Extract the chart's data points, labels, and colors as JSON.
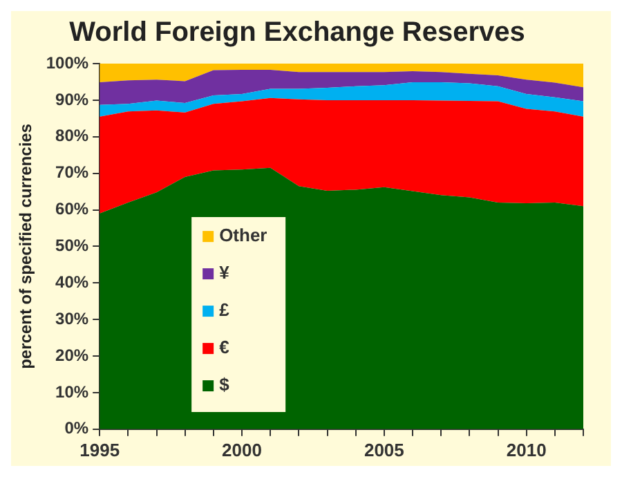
{
  "chart_data": {
    "type": "area",
    "title": "World Foreign Exchange Reserves",
    "ylabel": "percent of specified currencies",
    "stacked": true,
    "legend": "left",
    "grid": false,
    "x": [
      1995,
      1996,
      1997,
      1998,
      1999,
      2000,
      2001,
      2002,
      2003,
      2004,
      2005,
      2006,
      2007,
      2008,
      2009,
      2010,
      2011,
      2012
    ],
    "xlim": [
      1995,
      2012
    ],
    "xticks": [
      1995,
      {
        "value": 1996,
        "label": null
      },
      {
        "value": 1997,
        "label": null
      },
      {
        "value": 1998,
        "label": null
      },
      {
        "value": 1999,
        "label": null
      },
      2000,
      {
        "value": 2001,
        "label": null
      },
      {
        "value": 2002,
        "label": null
      },
      {
        "value": 2003,
        "label": null
      },
      {
        "value": 2004,
        "label": null
      },
      2005,
      {
        "value": 2006,
        "label": null
      },
      {
        "value": 2007,
        "label": null
      },
      {
        "value": 2008,
        "label": null
      },
      {
        "value": 2009,
        "label": null
      },
      2010,
      {
        "value": 2011,
        "label": null
      },
      {
        "value": 2012,
        "label": null
      }
    ],
    "ylim": [
      0,
      100
    ],
    "yticks": [
      {
        "value": 0,
        "label": "0%"
      },
      {
        "value": 10,
        "label": "10%"
      },
      {
        "value": 20,
        "label": "20%"
      },
      {
        "value": 30,
        "label": "30%"
      },
      {
        "value": 40,
        "label": "40%"
      },
      {
        "value": 50,
        "label": "50%"
      },
      {
        "value": 60,
        "label": "60%"
      },
      {
        "value": 70,
        "label": "70%"
      },
      {
        "value": 80,
        "label": "80%"
      },
      {
        "value": 90,
        "label": "90%"
      },
      {
        "value": 100,
        "label": "100%"
      }
    ],
    "series": [
      {
        "name": "$",
        "color": "#006400",
        "values": [
          59,
          62,
          64.8,
          69,
          70.8,
          71,
          71.5,
          66.5,
          65.2,
          65.5,
          66.2,
          65.1,
          64,
          63.4,
          62,
          61.8,
          62,
          61
        ]
      },
      {
        "name": "€",
        "color": "#ff0000",
        "values": [
          26.5,
          24.9,
          22.4,
          17.6,
          18.2,
          18.7,
          19.1,
          23.7,
          24.8,
          24.5,
          23.8,
          24.9,
          25.9,
          26.4,
          27.7,
          25.8,
          24.9,
          24.5
        ]
      },
      {
        "name": "£",
        "color": "#00b0f0",
        "values": [
          3.2,
          2.1,
          2.7,
          2.6,
          2.3,
          2.0,
          2.5,
          2.9,
          3.4,
          3.8,
          4.1,
          4.9,
          5.0,
          4.8,
          4.1,
          4.1,
          3.9,
          4.2
        ]
      },
      {
        "name": "¥",
        "color": "#7030a0",
        "values": [
          6.2,
          6.4,
          5.7,
          6.0,
          6.9,
          6.6,
          5.2,
          4.6,
          4.3,
          3.9,
          3.6,
          3.0,
          2.8,
          2.6,
          3.0,
          3.9,
          4.0,
          3.8
        ]
      },
      {
        "name": "Other",
        "color": "#ffc000",
        "values": [
          5.1,
          4.6,
          4.4,
          4.8,
          1.8,
          1.7,
          1.7,
          2.3,
          2.3,
          2.3,
          2.3,
          2.1,
          2.3,
          2.8,
          3.2,
          4.4,
          5.2,
          6.5
        ]
      }
    ]
  }
}
